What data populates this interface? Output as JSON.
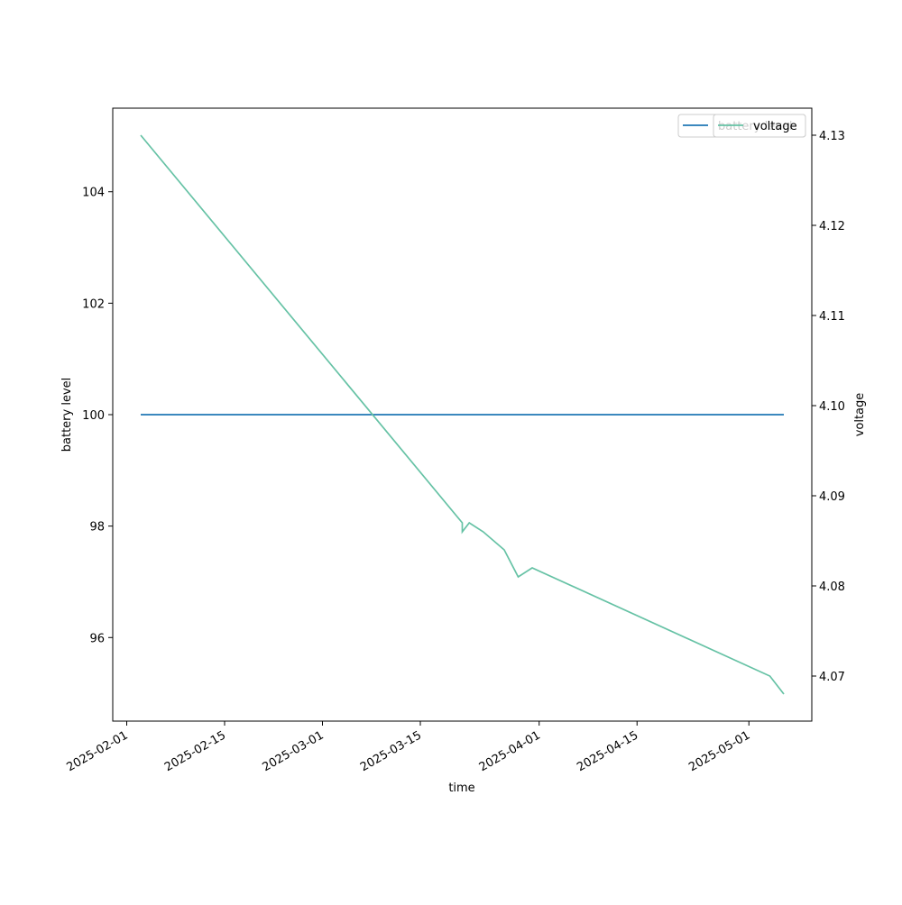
{
  "chart_data": {
    "type": "line",
    "x_label": "time",
    "y_label": "battery level",
    "y2_label": "voltage",
    "x": [
      "2025-02-03",
      "2025-03-21",
      "2025-03-21",
      "2025-03-22",
      "2025-03-24",
      "2025-03-27",
      "2025-03-29",
      "2025-03-31",
      "2025-05-04",
      "2025-05-06"
    ],
    "series": [
      {
        "name": "battery level",
        "color": "#1f77b4",
        "values": [
          100,
          100,
          100,
          100,
          100,
          100,
          100,
          100,
          100,
          100
        ]
      },
      {
        "name": "voltage",
        "color": "#66c2a5",
        "axis": "y2",
        "values": [
          4.13,
          4.087,
          4.086,
          4.087,
          4.086,
          4.084,
          4.081,
          4.082,
          4.07,
          4.068
        ]
      }
    ],
    "xlim": [
      "2025-01-30",
      "2025-05-10"
    ],
    "xticks": [
      "2025-02-01",
      "2025-02-15",
      "2025-03-01",
      "2025-03-15",
      "2025-04-01",
      "2025-04-15",
      "2025-05-01"
    ],
    "ylim": [
      94.5,
      105.5
    ],
    "yticks": [
      96,
      98,
      100,
      102,
      104
    ],
    "y2lim": [
      4.065,
      4.133
    ],
    "y2ticks": [
      4.07,
      4.08,
      4.09,
      {
        "value": 4.1,
        "label": "4.10"
      },
      4.11,
      4.12,
      4.13
    ],
    "legend": "upper right"
  }
}
